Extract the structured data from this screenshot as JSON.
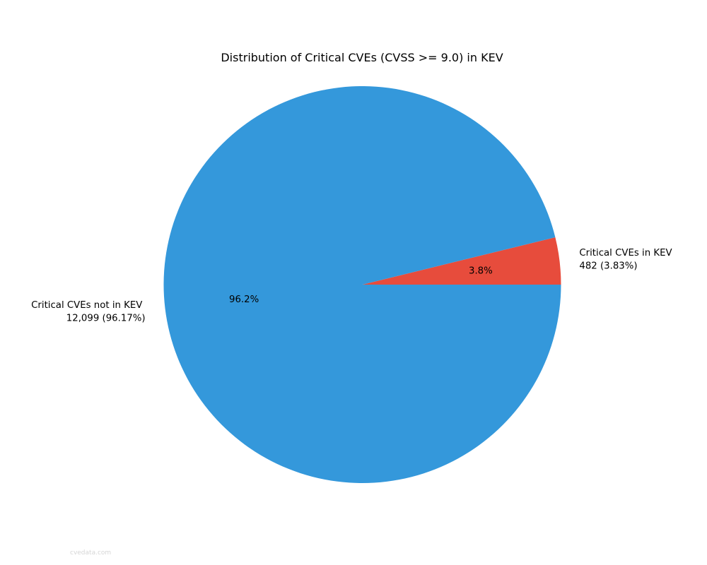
{
  "title": "Distribution of Critical CVEs (CVSS >= 9.0) in KEV",
  "watermark": "cvedata.com",
  "chart_data": {
    "type": "pie",
    "title": "Distribution of Critical CVEs (CVSS >= 9.0) in KEV",
    "start_angle_deg": 0,
    "direction": "counterclockwise",
    "legend": "none",
    "slices": [
      {
        "label": "Critical CVEs in KEV",
        "value": 482,
        "pct": 3.83,
        "value_label": "482 (3.83%)",
        "pct_label": "3.8%",
        "color": "#e74c3c"
      },
      {
        "label": "Critical CVEs not in KEV",
        "value": 12099,
        "pct": 96.17,
        "value_label": "12,099 (96.17%)",
        "pct_label": "96.2%",
        "color": "#3498db"
      }
    ]
  }
}
